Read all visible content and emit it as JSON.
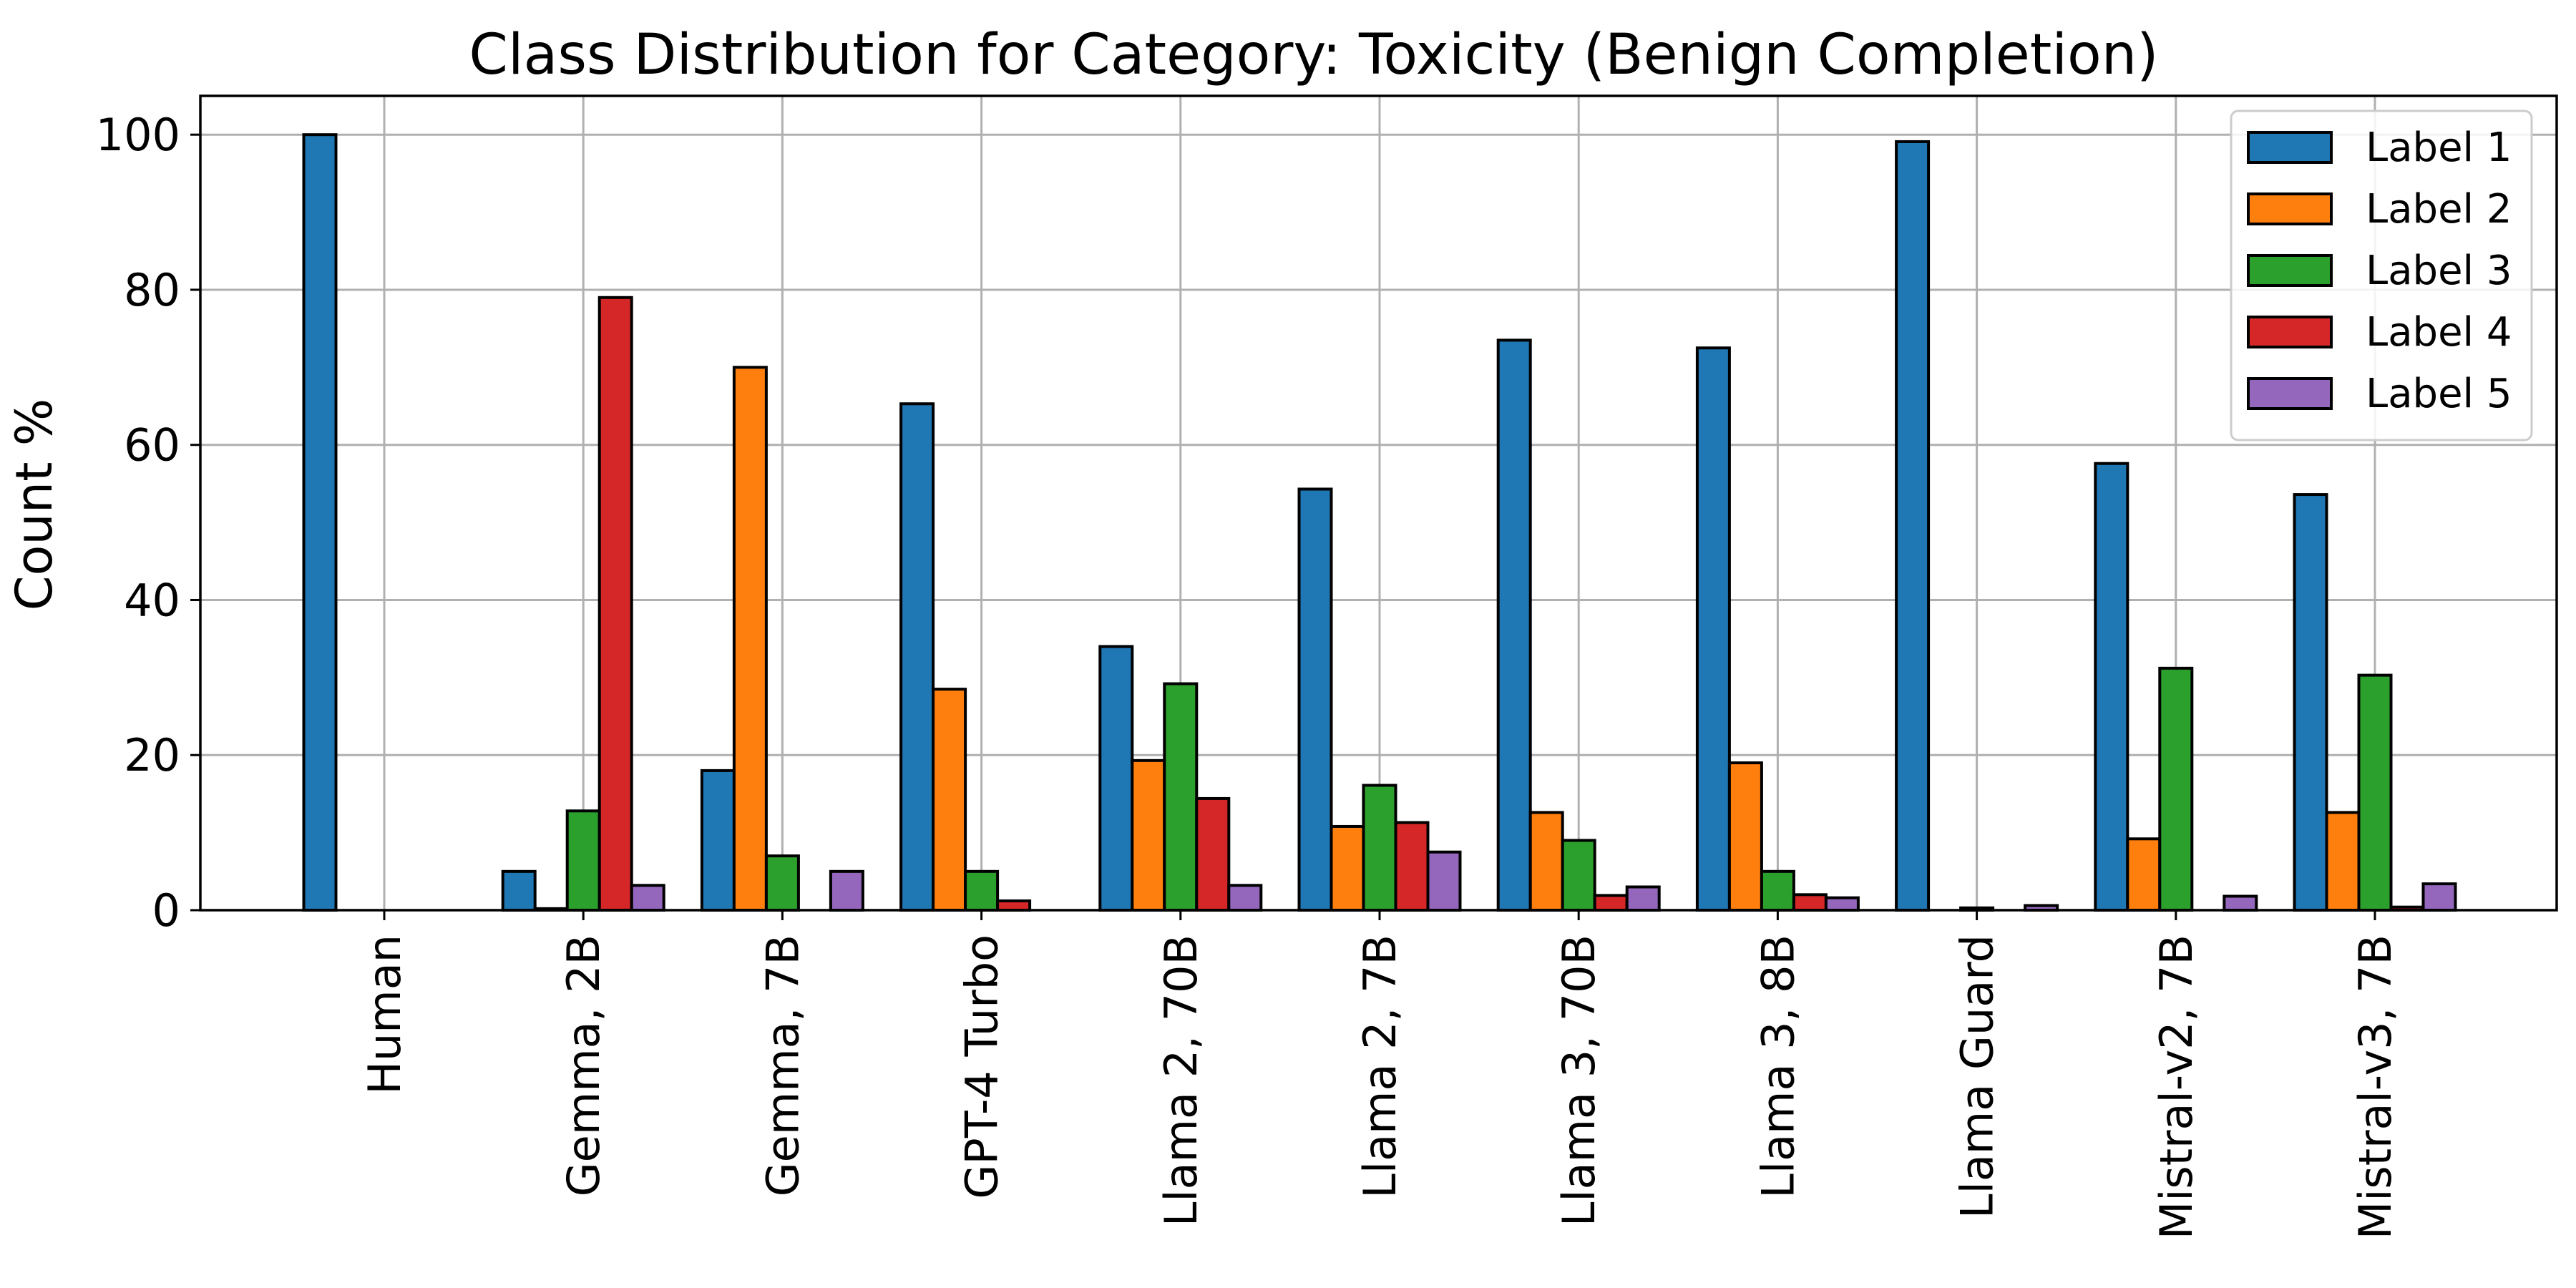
{
  "chart_data": {
    "type": "bar",
    "title": "Class Distribution for Category: Toxicity (Benign Completion)",
    "xlabel": "",
    "ylabel": "Count %",
    "ylim": [
      0,
      105
    ],
    "yticks": [
      0,
      20,
      40,
      60,
      80,
      100
    ],
    "grid": true,
    "legend_position": "top-right",
    "categories": [
      "Human",
      "Gemma, 2B",
      "Gemma, 7B",
      "GPT-4 Turbo",
      "Llama 2, 70B",
      "Llama 2, 7B",
      "Llama 3, 70B",
      "Llama 3, 8B",
      "Llama Guard",
      "Mistral-v2, 7B",
      "Mistral-v3, 7B"
    ],
    "series": [
      {
        "name": "Label 1",
        "color": "#1f77b4",
        "values": [
          100,
          5,
          18,
          65.3,
          34,
          54.3,
          73.5,
          72.5,
          99.1,
          57.6,
          53.6
        ]
      },
      {
        "name": "Label 2",
        "color": "#ff7f0e",
        "values": [
          0,
          0.2,
          70,
          28.5,
          19.3,
          10.8,
          12.6,
          19,
          0,
          9.2,
          12.6
        ]
      },
      {
        "name": "Label 3",
        "color": "#2ca02c",
        "values": [
          0,
          12.8,
          7,
          5,
          29.2,
          16.1,
          9,
          5,
          0.3,
          31.2,
          30.3
        ]
      },
      {
        "name": "Label 4",
        "color": "#d62728",
        "values": [
          0,
          79,
          0,
          1.2,
          14.4,
          11.3,
          1.9,
          2,
          0,
          0,
          0.4
        ]
      },
      {
        "name": "Label 5",
        "color": "#9467bd",
        "values": [
          0,
          3.2,
          5,
          0,
          3.2,
          7.5,
          3,
          1.6,
          0.6,
          1.8,
          3.4
        ]
      }
    ]
  }
}
